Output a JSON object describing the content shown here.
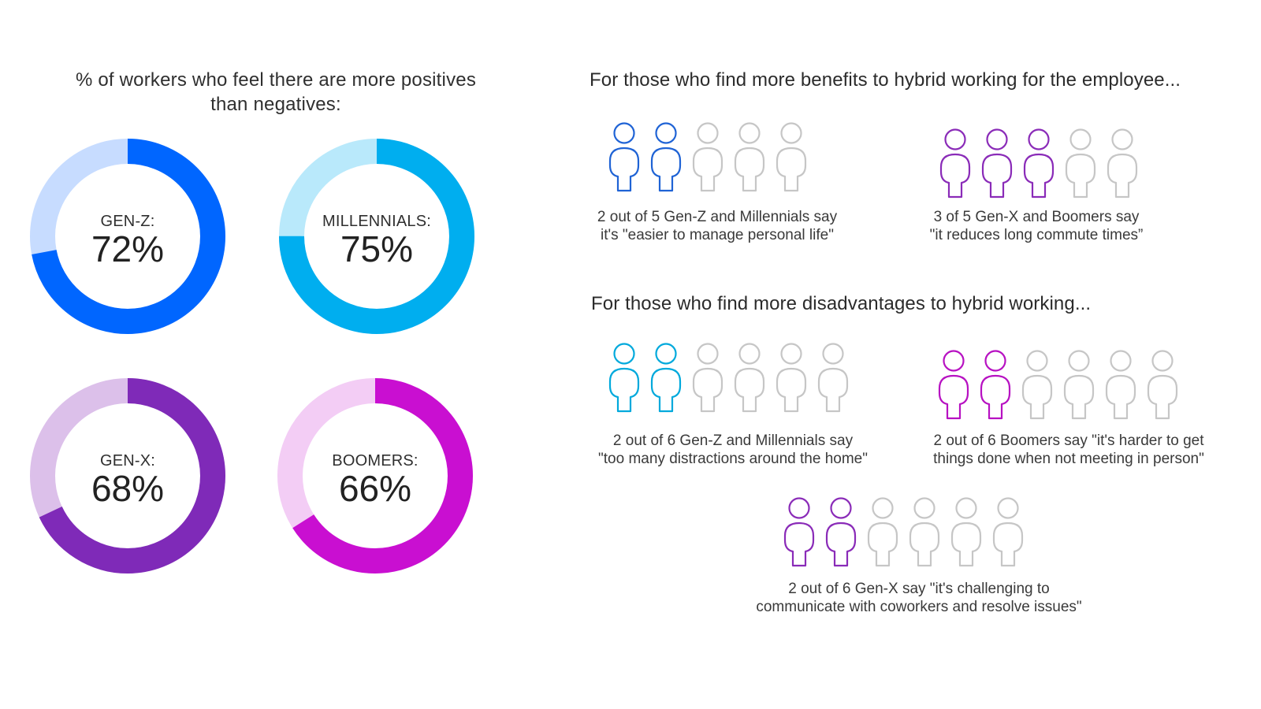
{
  "left_panel": {
    "title_line1": "% of workers who feel there are more positives",
    "title_line2": "than negatives:"
  },
  "chart_data": {
    "type": "pie",
    "title": "% of workers who feel there are more positives than negatives:",
    "series": [
      {
        "name": "GEN-Z:",
        "value": 72,
        "display": "72%",
        "color": "#0066ff",
        "track_color": "#c7dcff"
      },
      {
        "name": "MILLENNIALS:",
        "value": 75,
        "display": "75%",
        "color": "#00aeef",
        "track_color": "#b9e9fb"
      },
      {
        "name": "GEN-X:",
        "value": 68,
        "display": "68%",
        "color": "#7f2ab8",
        "track_color": "#dcc0ea"
      },
      {
        "name": "BOOMERS:",
        "value": 66,
        "display": "66%",
        "color": "#c90fd1",
        "track_color": "#f3cdf5"
      }
    ]
  },
  "benefits": {
    "heading": "For those who find more benefits to hybrid working for the employee...",
    "groups": [
      {
        "highlighted": 2,
        "total": 5,
        "color": "#1f63d5",
        "caption_line1": "2 out of 5 Gen-Z and Millennials say",
        "caption_line2": "it's \"easier to manage personal life\""
      },
      {
        "highlighted": 3,
        "total": 5,
        "color": "#8a2bb8",
        "caption_line1": "3 of 5 Gen-X and Boomers say",
        "caption_line2": "\"it reduces long commute times”"
      }
    ]
  },
  "disadvantages": {
    "heading": "For those who find more disadvantages to hybrid working...",
    "groups": [
      {
        "highlighted": 2,
        "total": 6,
        "color": "#00a9dc",
        "caption_line1": "2 out of 6 Gen-Z and Millennials say",
        "caption_line2": "\"too many distractions around the home\""
      },
      {
        "highlighted": 2,
        "total": 6,
        "color": "#b711c2",
        "caption_line1": "2 out of 6 Boomers say \"it's harder to get",
        "caption_line2": "things done when not meeting in person\""
      },
      {
        "highlighted": 2,
        "total": 6,
        "color": "#8a2bb8",
        "caption_line1": "2 out of 6 Gen-X say \"it's challenging to",
        "caption_line2": "communicate with coworkers and resolve issues\""
      }
    ]
  },
  "inactive_icon_color": "#c6c6c6"
}
